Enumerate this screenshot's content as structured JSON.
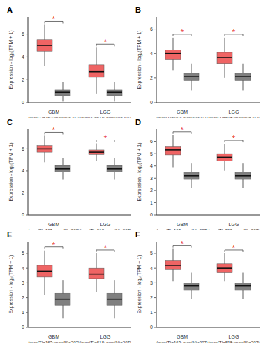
{
  "chart_data": [
    {
      "type": "box",
      "label": "A",
      "categories": [
        "GBM",
        "LGG"
      ],
      "category_notes": [
        "(num(T)=163; num(N)=207)",
        "(num(T)=518; num(N)=207)"
      ],
      "ylabel": "Expression - log₂(TPM + 1)",
      "ylim": [
        0,
        7.5
      ],
      "yticks": [
        0,
        2,
        4,
        6
      ],
      "series": [
        {
          "color": "#ef6464",
          "boxes": [
            {
              "whislo": 3.2,
              "q1": 4.5,
              "med": 5.0,
              "q3": 5.5,
              "whishi": 6.8
            },
            {
              "whislo": 0.8,
              "q1": 2.2,
              "med": 2.7,
              "q3": 3.3,
              "whishi": 4.8
            }
          ]
        },
        {
          "color": "#808080",
          "boxes": [
            {
              "whislo": 0.1,
              "q1": 0.6,
              "med": 0.9,
              "q3": 1.1,
              "whishi": 1.8
            },
            {
              "whislo": 0.1,
              "q1": 0.6,
              "med": 0.9,
              "q3": 1.1,
              "whishi": 1.8
            }
          ]
        }
      ],
      "annotations": [
        {
          "text": "*",
          "color": "#e8322c"
        },
        {
          "text": "*",
          "color": "#e8322c"
        }
      ]
    },
    {
      "type": "box",
      "label": "B",
      "categories": [
        "GBM",
        "LGG"
      ],
      "category_notes": [
        "(num(T)=163; num(N)=207)",
        "(num(T)=518; num(N)=207)"
      ],
      "ylabel": "Expression - log₂(TPM + 1)",
      "ylim": [
        0,
        7
      ],
      "yticks": [
        0,
        2,
        4,
        6
      ],
      "series": [
        {
          "color": "#ef6464",
          "boxes": [
            {
              "whislo": 2.6,
              "q1": 3.5,
              "med": 4.0,
              "q3": 4.3,
              "whishi": 5.3
            },
            {
              "whislo": 2.0,
              "q1": 3.2,
              "med": 3.7,
              "q3": 4.1,
              "whishi": 5.3
            }
          ]
        },
        {
          "color": "#808080",
          "boxes": [
            {
              "whislo": 1.0,
              "q1": 1.8,
              "med": 2.1,
              "q3": 2.4,
              "whishi": 3.2
            },
            {
              "whislo": 1.0,
              "q1": 1.8,
              "med": 2.1,
              "q3": 2.4,
              "whishi": 3.2
            }
          ]
        }
      ],
      "annotations": [
        {
          "text": "*",
          "color": "#e8322c"
        },
        {
          "text": "*",
          "color": "#e8322c"
        }
      ]
    },
    {
      "type": "box",
      "label": "C",
      "categories": [
        "GBM",
        "LGG"
      ],
      "category_notes": [
        "(num(T)=163; num(N)=207)",
        "(num(T)=518; num(N)=207)"
      ],
      "ylabel": "Expression - log₂(TPM + 1)",
      "ylim": [
        0,
        7.8
      ],
      "yticks": [
        0,
        2,
        4,
        6
      ],
      "series": [
        {
          "color": "#ef6464",
          "boxes": [
            {
              "whislo": 4.8,
              "q1": 5.7,
              "med": 6.0,
              "q3": 6.3,
              "whishi": 7.2
            },
            {
              "whislo": 4.9,
              "q1": 5.5,
              "med": 5.7,
              "q3": 5.9,
              "whishi": 6.5
            }
          ]
        },
        {
          "color": "#808080",
          "boxes": [
            {
              "whislo": 3.2,
              "q1": 3.9,
              "med": 4.2,
              "q3": 4.5,
              "whishi": 5.2
            },
            {
              "whislo": 3.2,
              "q1": 3.9,
              "med": 4.2,
              "q3": 4.5,
              "whishi": 5.2
            }
          ]
        }
      ],
      "annotations": [
        {
          "text": "*",
          "color": "#e8322c"
        },
        {
          "text": "*",
          "color": "#e8322c"
        }
      ]
    },
    {
      "type": "box",
      "label": "D",
      "categories": [
        "GBM",
        "LGG"
      ],
      "category_notes": [
        "(num(T)=163; num(N)=207)",
        "(num(T)=518; num(N)=207)"
      ],
      "ylabel": "Expression - log₂(TPM + 1)",
      "ylim": [
        0,
        7
      ],
      "yticks": [
        0,
        1,
        2,
        3,
        4,
        5,
        6
      ],
      "series": [
        {
          "color": "#ef6464",
          "boxes": [
            {
              "whislo": 3.9,
              "q1": 4.9,
              "med": 5.3,
              "q3": 5.6,
              "whishi": 6.5
            },
            {
              "whislo": 3.6,
              "q1": 4.4,
              "med": 4.7,
              "q3": 5.0,
              "whishi": 5.8
            }
          ]
        },
        {
          "color": "#808080",
          "boxes": [
            {
              "whislo": 2.2,
              "q1": 2.9,
              "med": 3.2,
              "q3": 3.5,
              "whishi": 4.2
            },
            {
              "whislo": 2.2,
              "q1": 2.9,
              "med": 3.2,
              "q3": 3.5,
              "whishi": 4.2
            }
          ]
        }
      ],
      "annotations": [
        {
          "text": "*",
          "color": "#e8322c"
        },
        {
          "text": "*",
          "color": "#e8322c"
        }
      ]
    },
    {
      "type": "box",
      "label": "E",
      "categories": [
        "GBM",
        "LGG"
      ],
      "category_notes": [
        "(num(T)=163; num(N)=207)",
        "(num(T)=518; num(N)=207)"
      ],
      "ylabel": "Expression - log₂(TPM + 1)",
      "ylim": [
        0,
        5.8
      ],
      "yticks": [
        0,
        1,
        2,
        3,
        4,
        5
      ],
      "series": [
        {
          "color": "#ef6464",
          "boxes": [
            {
              "whislo": 2.2,
              "q1": 3.4,
              "med": 3.8,
              "q3": 4.2,
              "whishi": 5.2
            },
            {
              "whislo": 2.4,
              "q1": 3.3,
              "med": 3.6,
              "q3": 4.0,
              "whishi": 5.0
            }
          ]
        },
        {
          "color": "#808080",
          "boxes": [
            {
              "whislo": 0.6,
              "q1": 1.5,
              "med": 1.9,
              "q3": 2.3,
              "whishi": 3.2
            },
            {
              "whislo": 0.6,
              "q1": 1.5,
              "med": 1.9,
              "q3": 2.3,
              "whishi": 3.2
            }
          ]
        }
      ],
      "annotations": [
        {
          "text": "*",
          "color": "#e8322c"
        },
        {
          "text": "*",
          "color": "#e8322c"
        }
      ]
    },
    {
      "type": "box",
      "label": "F",
      "categories": [
        "GBM",
        "LGG"
      ],
      "category_notes": [
        "(num(T)=163; num(N)=207)",
        "(num(T)=518; num(N)=207)"
      ],
      "ylabel": "Expression - log₂(TPM + 1)",
      "ylim": [
        0,
        5.8
      ],
      "yticks": [
        0,
        1,
        2,
        3,
        4,
        5
      ],
      "series": [
        {
          "color": "#ef6464",
          "boxes": [
            {
              "whislo": 3.1,
              "q1": 3.9,
              "med": 4.2,
              "q3": 4.5,
              "whishi": 5.3
            },
            {
              "whislo": 3.1,
              "q1": 3.7,
              "med": 4.0,
              "q3": 4.3,
              "whishi": 5.0
            }
          ]
        },
        {
          "color": "#808080",
          "boxes": [
            {
              "whislo": 1.9,
              "q1": 2.5,
              "med": 2.8,
              "q3": 3.0,
              "whishi": 3.7
            },
            {
              "whislo": 1.9,
              "q1": 2.5,
              "med": 2.8,
              "q3": 3.0,
              "whishi": 3.7
            }
          ]
        }
      ],
      "annotations": [
        {
          "text": "*",
          "color": "#e8322c"
        },
        {
          "text": "*",
          "color": "#e8322c"
        }
      ]
    }
  ]
}
